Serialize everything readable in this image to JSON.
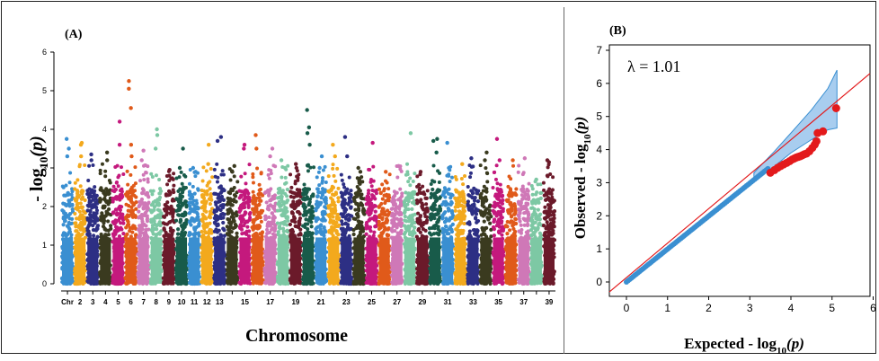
{
  "chart_data": [
    {
      "type": "scatter",
      "subtype": "manhattan",
      "panel_label": "(A)",
      "xlabel": "Chromosome",
      "ylabel_prefix": "- log",
      "ylabel_sub": "10",
      "ylabel_var": "(p)",
      "ylim": [
        0,
        6
      ],
      "yticks": [
        "0",
        "1",
        "2",
        "3",
        "4",
        "5",
        "6"
      ],
      "xtick_first_label": "Chr",
      "chromosomes": [
        {
          "chr": 1,
          "label": "Chr",
          "color": "#3a8fd1",
          "max": 3.75,
          "peaks": [
            3.75,
            3.5,
            3.3
          ]
        },
        {
          "chr": 2,
          "label": "2",
          "color": "#f3a91d",
          "max": 3.65,
          "peaks": [
            3.65,
            3.6,
            3.3
          ]
        },
        {
          "chr": 3,
          "label": "3",
          "color": "#2d2f84",
          "max": 3.35,
          "peaks": [
            3.35,
            3.2
          ]
        },
        {
          "chr": 4,
          "label": "4",
          "color": "#3a3a1f",
          "max": 3.4,
          "peaks": [
            3.4,
            3.2
          ]
        },
        {
          "chr": 5,
          "label": "5",
          "color": "#c4197d",
          "max": 4.2,
          "peaks": [
            4.2,
            3.6
          ]
        },
        {
          "chr": 6,
          "label": "6",
          "color": "#e05a1a",
          "max": 5.25,
          "peaks": [
            5.25,
            5.05,
            4.55,
            3.6,
            3.3
          ]
        },
        {
          "chr": 7,
          "label": "7",
          "color": "#cf78b7",
          "max": 3.45,
          "peaks": [
            3.45,
            3.2
          ]
        },
        {
          "chr": 8,
          "label": "8",
          "color": "#7dc8a4",
          "max": 4.0,
          "peaks": [
            4.0,
            3.85,
            3.5
          ]
        },
        {
          "chr": 9,
          "label": "9",
          "color": "#6b1a2a",
          "max": 2.95,
          "peaks": [
            2.95,
            2.8
          ]
        },
        {
          "chr": 10,
          "label": "10",
          "color": "#185b4a",
          "max": 3.5,
          "peaks": [
            3.5,
            3.0
          ]
        },
        {
          "chr": 11,
          "label": "11",
          "color": "#3a8fd1",
          "max": 3.0,
          "peaks": [
            3.0,
            2.9
          ]
        },
        {
          "chr": 12,
          "label": "12",
          "color": "#f3a91d",
          "max": 3.6,
          "peaks": [
            3.6,
            3.1
          ]
        },
        {
          "chr": 13,
          "label": "13",
          "color": "#2d2f84",
          "max": 3.8,
          "peaks": [
            3.8,
            3.7
          ]
        },
        {
          "chr": 14,
          "label": "",
          "color": "#3a3a1f",
          "max": 3.05,
          "peaks": [
            3.05,
            2.9
          ]
        },
        {
          "chr": 15,
          "label": "15",
          "color": "#c4197d",
          "max": 3.6,
          "peaks": [
            3.6,
            3.5
          ]
        },
        {
          "chr": 16,
          "label": "",
          "color": "#e05a1a",
          "max": 3.85,
          "peaks": [
            3.85,
            3.5
          ]
        },
        {
          "chr": 17,
          "label": "17",
          "color": "#cf78b7",
          "max": 3.5,
          "peaks": [
            3.5,
            3.3
          ]
        },
        {
          "chr": 18,
          "label": "",
          "color": "#7dc8a4",
          "max": 3.2,
          "peaks": [
            3.2,
            3.0
          ]
        },
        {
          "chr": 19,
          "label": "19",
          "color": "#6b1a2a",
          "max": 3.1,
          "peaks": [
            3.1,
            3.0
          ]
        },
        {
          "chr": 20,
          "label": "",
          "color": "#185b4a",
          "max": 4.5,
          "peaks": [
            4.5,
            4.05,
            3.9,
            3.6
          ]
        },
        {
          "chr": 21,
          "label": "21",
          "color": "#3a8fd1",
          "max": 3.3,
          "peaks": [
            3.3,
            3.0
          ]
        },
        {
          "chr": 22,
          "label": "",
          "color": "#f3a91d",
          "max": 3.6,
          "peaks": [
            3.6,
            3.3
          ]
        },
        {
          "chr": 23,
          "label": "23",
          "color": "#2d2f84",
          "max": 3.8,
          "peaks": [
            3.8,
            3.3
          ]
        },
        {
          "chr": 24,
          "label": "",
          "color": "#3a3a1f",
          "max": 3.0,
          "peaks": [
            3.0,
            2.9
          ]
        },
        {
          "chr": 25,
          "label": "25",
          "color": "#c4197d",
          "max": 3.65,
          "peaks": [
            3.65
          ]
        },
        {
          "chr": 26,
          "label": "",
          "color": "#e05a1a",
          "max": 2.9,
          "peaks": [
            2.9
          ]
        },
        {
          "chr": 27,
          "label": "27",
          "color": "#cf78b7",
          "max": 3.05,
          "peaks": [
            3.05
          ]
        },
        {
          "chr": 28,
          "label": "",
          "color": "#7dc8a4",
          "max": 3.9,
          "peaks": [
            3.9
          ]
        },
        {
          "chr": 29,
          "label": "29",
          "color": "#6b1a2a",
          "max": 2.9,
          "peaks": [
            2.9
          ]
        },
        {
          "chr": 30,
          "label": "",
          "color": "#185b4a",
          "max": 3.75,
          "peaks": [
            3.75,
            3.7,
            3.4
          ]
        },
        {
          "chr": 31,
          "label": "31",
          "color": "#3a8fd1",
          "max": 3.65,
          "peaks": [
            3.65,
            3.0
          ]
        },
        {
          "chr": 32,
          "label": "",
          "color": "#f3a91d",
          "max": 3.1,
          "peaks": [
            3.1
          ]
        },
        {
          "chr": 33,
          "label": "33",
          "color": "#2d2f84",
          "max": 3.25,
          "peaks": [
            3.25
          ]
        },
        {
          "chr": 34,
          "label": "",
          "color": "#3a3a1f",
          "max": 3.4,
          "peaks": [
            3.4,
            3.2
          ]
        },
        {
          "chr": 35,
          "label": "35",
          "color": "#c4197d",
          "max": 3.75,
          "peaks": [
            3.75,
            3.2
          ]
        },
        {
          "chr": 36,
          "label": "",
          "color": "#e05a1a",
          "max": 3.2,
          "peaks": [
            3.2
          ]
        },
        {
          "chr": 37,
          "label": "37",
          "color": "#cf78b7",
          "max": 3.25,
          "peaks": [
            3.25
          ]
        },
        {
          "chr": 38,
          "label": "",
          "color": "#7dc8a4",
          "max": 2.7,
          "peaks": [
            2.7
          ]
        },
        {
          "chr": 39,
          "label": "39",
          "color": "#6b1a2a",
          "max": 3.2,
          "peaks": [
            3.2,
            3.15,
            2.8
          ]
        }
      ]
    },
    {
      "type": "scatter",
      "subtype": "qq",
      "panel_label": "(B)",
      "annotation": "λ = 1.01",
      "xlabel_prefix": "Expected - log",
      "xlabel_sub": "10",
      "xlabel_var": "(p)",
      "ylabel_prefix": "Observed - log",
      "ylabel_sub": "10",
      "ylabel_var": "(p)",
      "xlim": [
        0,
        6
      ],
      "ylim": [
        0,
        7
      ],
      "xticks": [
        "0",
        "1",
        "2",
        "3",
        "4",
        "5",
        "6"
      ],
      "yticks": [
        "0",
        "1",
        "2",
        "3",
        "4",
        "5",
        "6",
        "7"
      ],
      "colors": {
        "points_main": "#3a8fd1",
        "points_tail": "#e31a1c",
        "diagonal": "#e31a1c",
        "band": "#a8cdef"
      },
      "band_upper": [
        [
          3.1,
          3.3
        ],
        [
          3.6,
          3.95
        ],
        [
          4.0,
          4.5
        ],
        [
          4.5,
          5.2
        ],
        [
          4.9,
          5.85
        ],
        [
          5.12,
          6.4
        ]
      ],
      "band_lower": [
        [
          3.1,
          3.05
        ],
        [
          3.6,
          3.5
        ],
        [
          4.0,
          3.9
        ],
        [
          4.5,
          4.3
        ],
        [
          4.9,
          4.6
        ],
        [
          5.12,
          4.65
        ]
      ],
      "tail_points": [
        [
          3.5,
          3.3
        ],
        [
          3.6,
          3.38
        ],
        [
          3.68,
          3.45
        ],
        [
          3.75,
          3.5
        ],
        [
          3.82,
          3.55
        ],
        [
          3.9,
          3.6
        ],
        [
          3.97,
          3.65
        ],
        [
          4.03,
          3.7
        ],
        [
          4.08,
          3.73
        ],
        [
          4.13,
          3.76
        ],
        [
          4.18,
          3.78
        ],
        [
          4.23,
          3.8
        ],
        [
          4.28,
          3.83
        ],
        [
          4.33,
          3.86
        ],
        [
          4.38,
          3.88
        ],
        [
          4.45,
          3.95
        ],
        [
          4.52,
          4.05
        ],
        [
          4.58,
          4.15
        ],
        [
          4.62,
          4.25
        ],
        [
          4.65,
          4.5
        ],
        [
          4.78,
          4.55
        ],
        [
          5.1,
          5.25
        ]
      ]
    }
  ]
}
